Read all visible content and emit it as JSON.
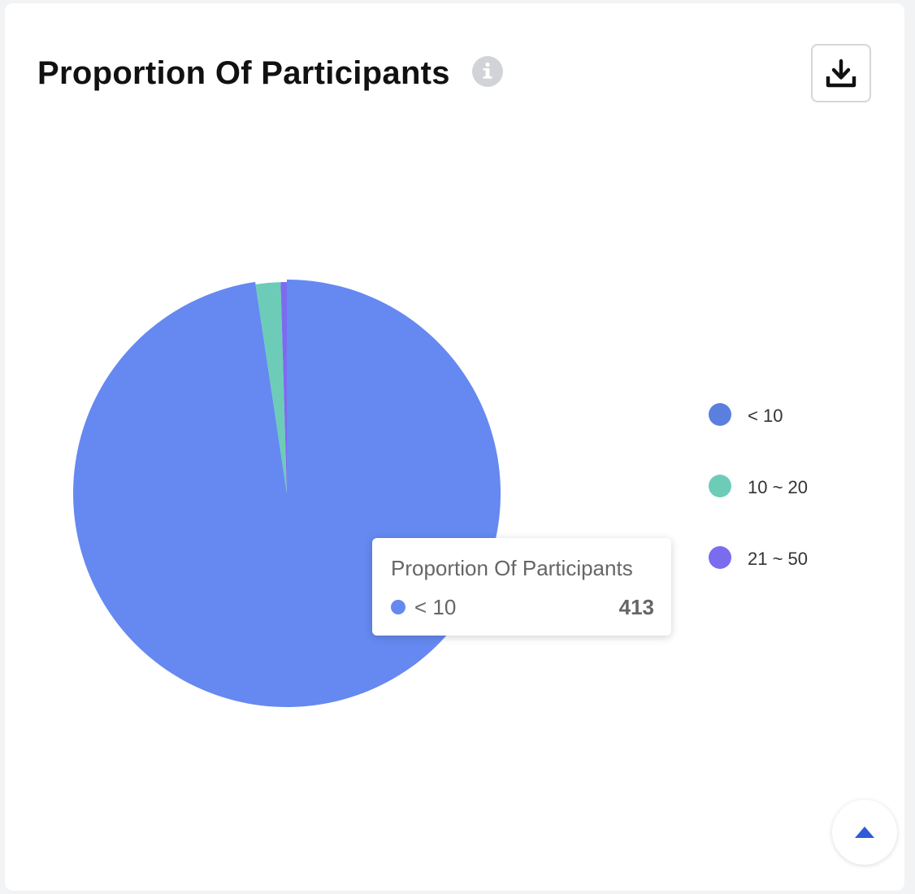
{
  "card": {
    "title": "Proportion Of Participants",
    "info_icon": "info-circle-icon",
    "download_icon": "download-icon",
    "scroll_top_icon": "caret-up-icon"
  },
  "tooltip": {
    "title": "Proportion Of Participants",
    "label": "< 10",
    "value": "413",
    "color": "#6589f0"
  },
  "colors": {
    "accent": "#2f5bd8",
    "info_icon": "#d1d3d8"
  },
  "chart_data": {
    "type": "pie",
    "title": "Proportion Of Participants",
    "legend_position": "right",
    "series": [
      {
        "name": "< 10",
        "value": 413,
        "color": "#6589f0",
        "legend_color": "#5b7fde"
      },
      {
        "name": "10 ~ 20",
        "value": 8,
        "color": "#6cccb8",
        "legend_color": "#6cccb8"
      },
      {
        "name": "21 ~ 50",
        "value": 2,
        "color": "#7b6cef",
        "legend_color": "#7b6cef"
      }
    ],
    "highlighted": "< 10"
  }
}
